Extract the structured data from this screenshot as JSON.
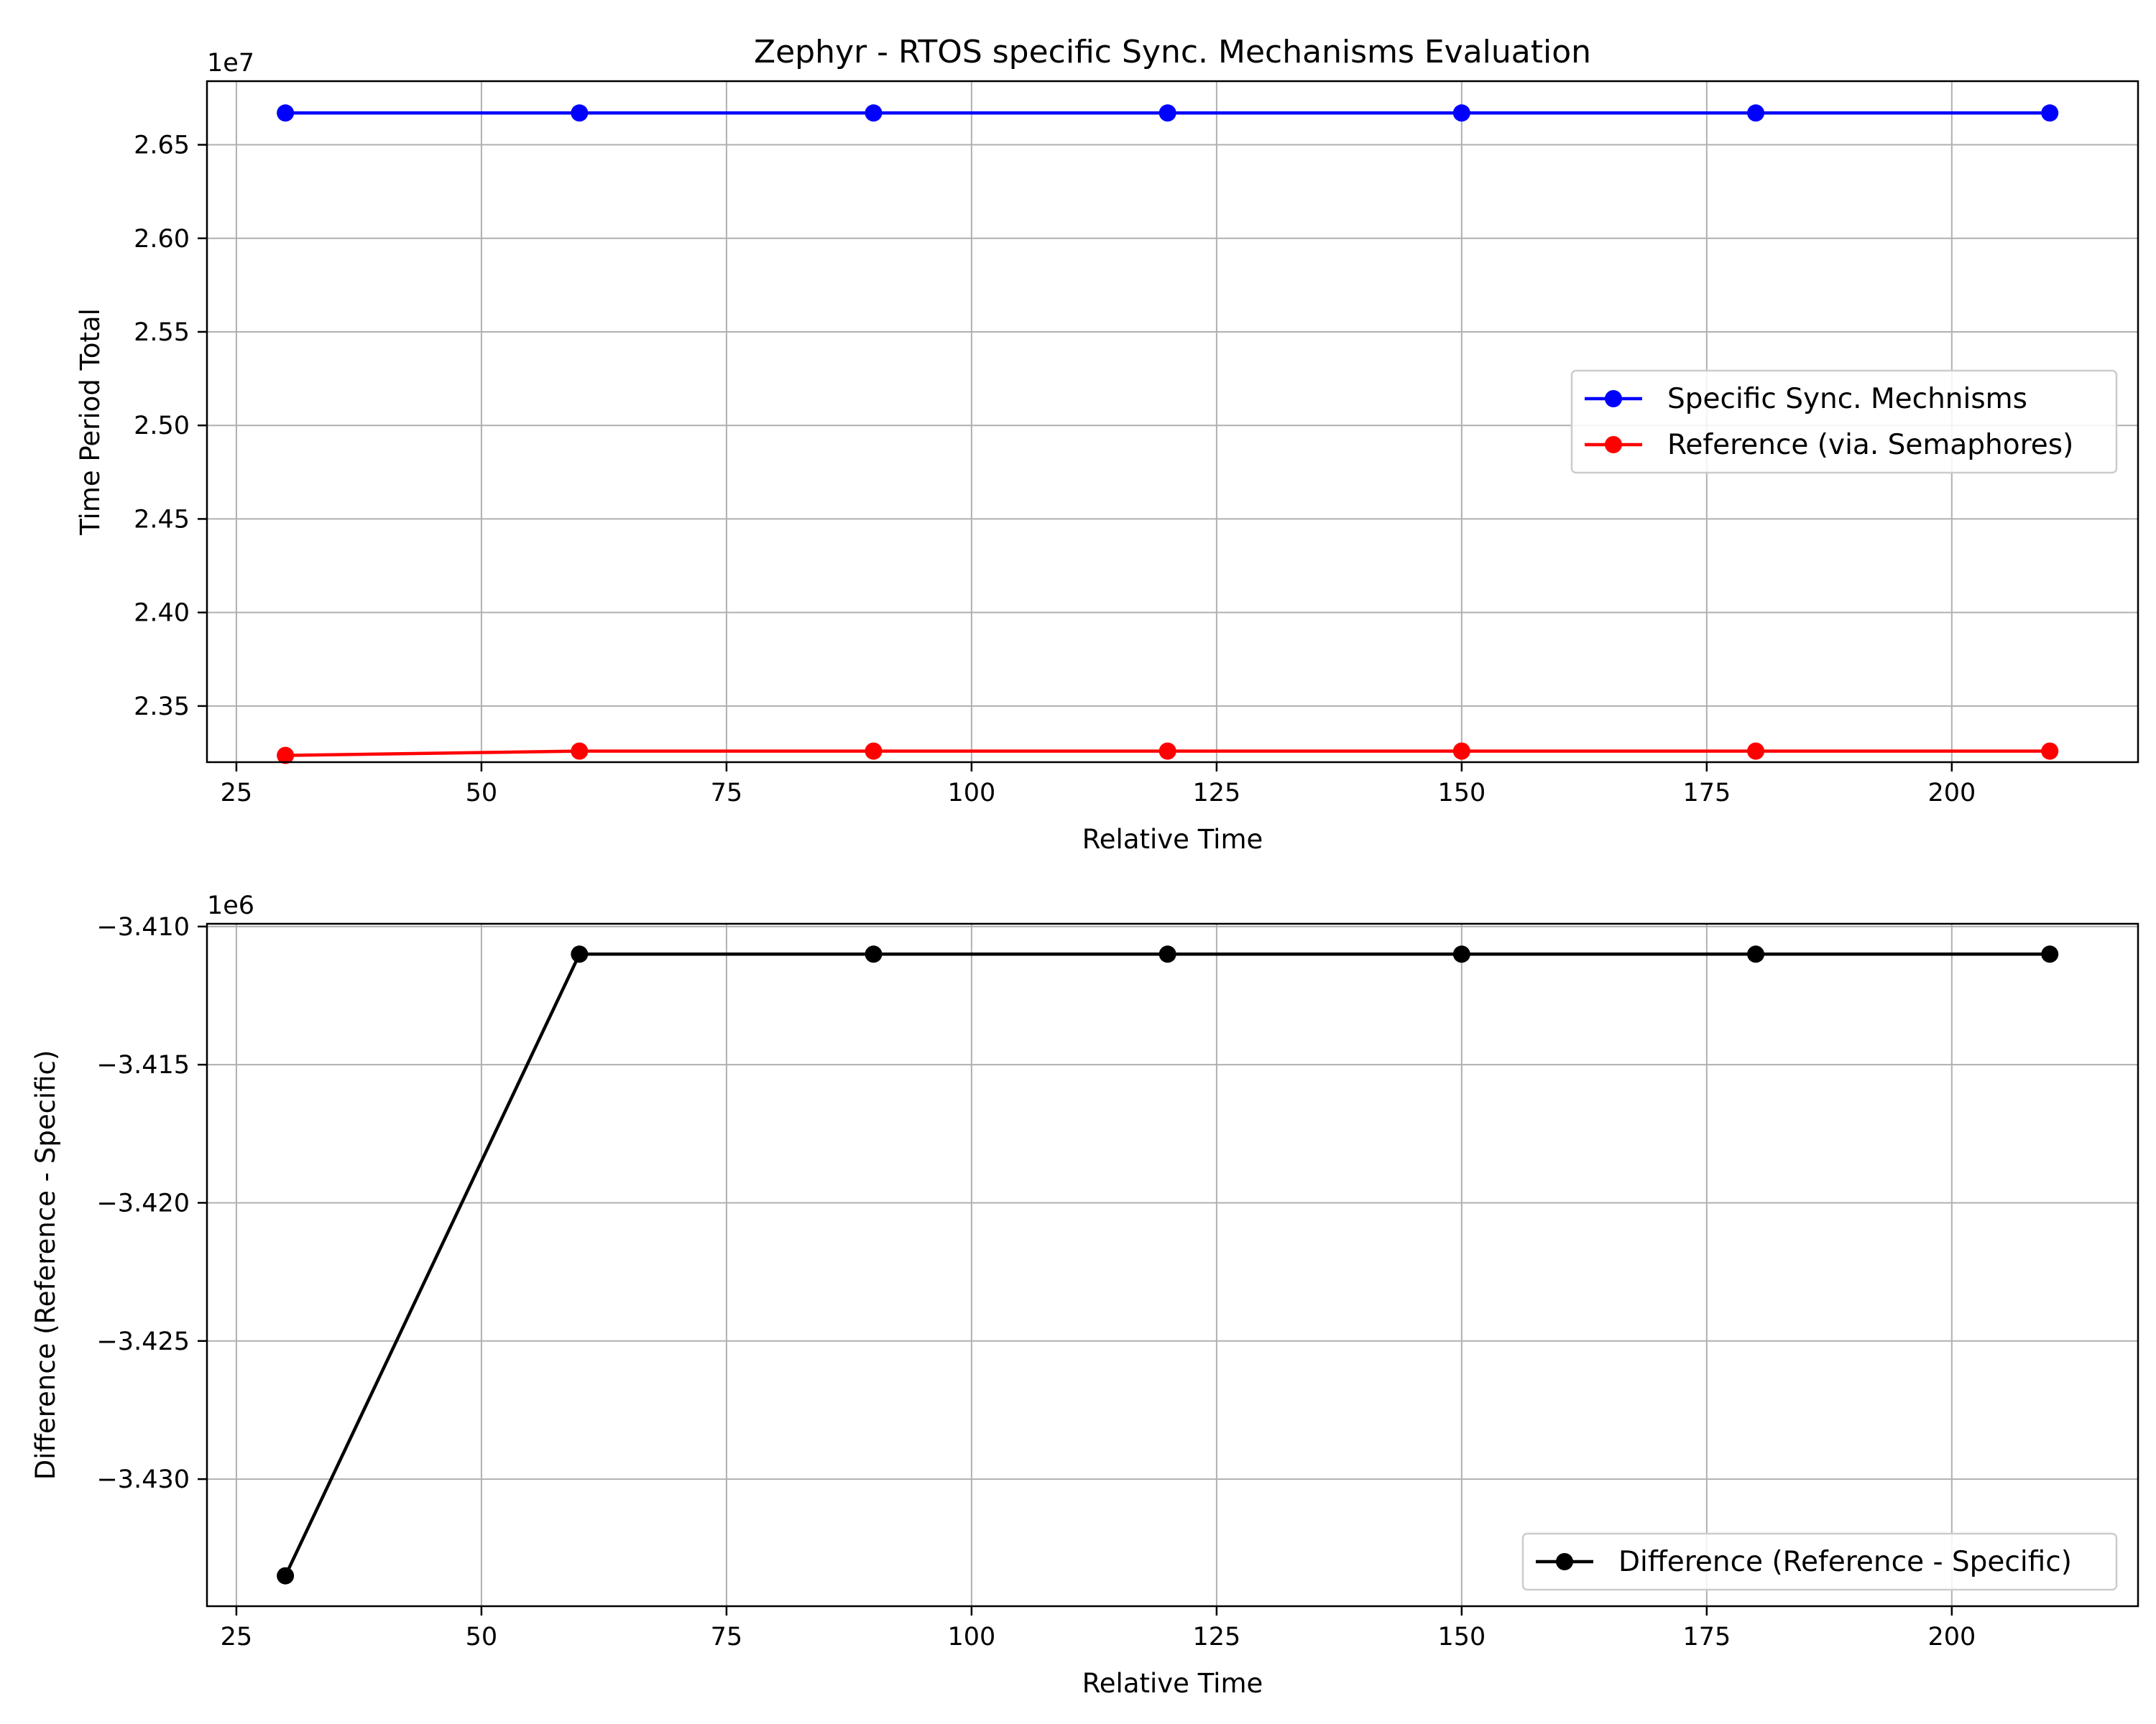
{
  "chart_data": [
    {
      "type": "line",
      "title": "Zephyr - RTOS specific Sync. Mechanisms Evaluation",
      "xlabel": "Relative Time",
      "ylabel": "Time Period Total",
      "y_offset_label": "1e7",
      "x": [
        30,
        60,
        90,
        120,
        150,
        180,
        210
      ],
      "series": [
        {
          "name": "Specific Sync. Mechnisms",
          "color": "#0000ff",
          "marker": "circle",
          "values": [
            26670000,
            26670000,
            26670000,
            26670000,
            26670000,
            26670000,
            26670000
          ]
        },
        {
          "name": "Reference (via. Semaphores)",
          "color": "#ff0000",
          "marker": "circle",
          "values": [
            23236000,
            23259000,
            23259000,
            23259000,
            23259000,
            23259000,
            23259000
          ]
        }
      ],
      "xlim": [
        22,
        219
      ],
      "ylim": [
        23200000,
        26840000
      ],
      "xticks": [
        25,
        50,
        75,
        100,
        125,
        150,
        175,
        200
      ],
      "yticks": [
        2.35,
        2.4,
        2.45,
        2.5,
        2.55,
        2.6,
        2.65
      ],
      "ytick_labels": [
        "2.35",
        "2.40",
        "2.45",
        "2.50",
        "2.55",
        "2.60",
        "2.65"
      ],
      "grid": true,
      "legend_position": "center-right"
    },
    {
      "type": "line",
      "title": "",
      "xlabel": "Relative Time",
      "ylabel": "Difference (Reference - Specific)",
      "y_offset_label": "1e6",
      "x": [
        30,
        60,
        90,
        120,
        150,
        180,
        210
      ],
      "series": [
        {
          "name": "Difference (Reference - Specific)",
          "color": "#000000",
          "marker": "circle",
          "values": [
            -3433500,
            -3411000,
            -3411000,
            -3411000,
            -3411000,
            -3411000,
            -3411000
          ]
        }
      ],
      "xlim": [
        22,
        219
      ],
      "ylim": [
        -3434600,
        -3409900
      ],
      "xticks": [
        25,
        50,
        75,
        100,
        125,
        150,
        175,
        200
      ],
      "yticks": [
        -3.43,
        -3.425,
        -3.42,
        -3.415,
        -3.41
      ],
      "ytick_labels": [
        "−3.430",
        "−3.425",
        "−3.420",
        "−3.415",
        "−3.410"
      ],
      "grid": true,
      "legend_position": "lower-right"
    }
  ]
}
